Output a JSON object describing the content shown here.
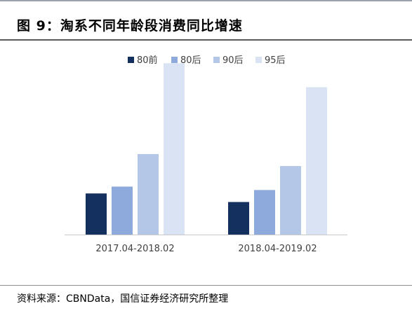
{
  "title": "图 9：淘系不同年龄段消费同比增速",
  "source": "资料来源：CBNData，国信证券经济研究所整理",
  "colors": {
    "80前": "#14305e",
    "80后": "#8ea9db",
    "90后": "#b4c7e7",
    "95后": "#dae3f3",
    "axis": "#c8c8c8"
  },
  "chart_data": {
    "type": "bar",
    "title": "淘系不同年龄段消费同比增速",
    "categories": [
      "2017.04-2018.02",
      "2018.04-2019.02"
    ],
    "series": [
      {
        "name": "80前",
        "values": [
          0.24,
          0.19
        ]
      },
      {
        "name": "80后",
        "values": [
          0.28,
          0.26
        ]
      },
      {
        "name": "90后",
        "values": [
          0.47,
          0.4
        ]
      },
      {
        "name": "95后",
        "values": [
          1.0,
          0.86
        ]
      }
    ],
    "ylim": [
      0,
      1.05
    ],
    "y_axis_visible": false,
    "grid": false,
    "legend": "top-center",
    "xlabel": "",
    "ylabel": ""
  }
}
